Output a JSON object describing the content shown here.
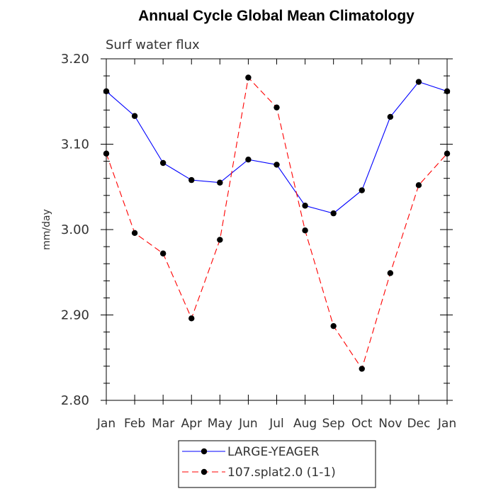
{
  "chart_data": {
    "type": "line",
    "title": "Annual Cycle Global Mean Climatology",
    "subtitle": "Surf water flux",
    "xlabel": "",
    "ylabel": "mm/day",
    "categories": [
      "Jan",
      "Feb",
      "Mar",
      "Apr",
      "May",
      "Jun",
      "Jul",
      "Aug",
      "Sep",
      "Oct",
      "Nov",
      "Dec",
      "Jan"
    ],
    "ylim": [
      2.8,
      3.2
    ],
    "yticks": [
      "2.80",
      "2.90",
      "3.00",
      "3.10",
      "3.20"
    ],
    "grid": false,
    "legend_position": "bottom",
    "series": [
      {
        "name": "LARGE-YEAGER",
        "color": "#0000ff",
        "dash": "solid",
        "values": [
          3.162,
          3.133,
          3.078,
          3.058,
          3.055,
          3.082,
          3.076,
          3.028,
          3.019,
          3.046,
          3.132,
          3.173,
          3.162
        ]
      },
      {
        "name": "107.splat2.0 (1-1)",
        "color": "#ff0000",
        "dash": "dashed",
        "values": [
          3.089,
          2.996,
          2.972,
          2.896,
          2.988,
          3.178,
          3.143,
          2.999,
          2.887,
          2.837,
          2.949,
          3.052,
          3.089
        ]
      }
    ]
  }
}
